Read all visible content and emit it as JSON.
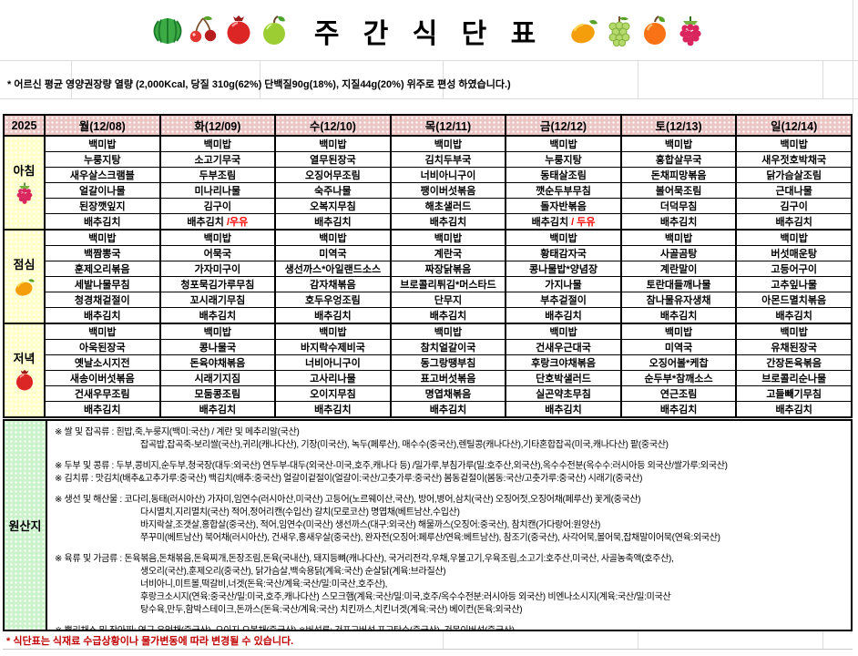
{
  "title": "주 간 식 단 표",
  "note": "* 어르신 평균 영양권장량 열량 (2,000Kcal, 당질 310g(62%) 단백질90g(18%), 지질44g(20%) 위주로 편성 하였습니다.)",
  "colors": {
    "header_pink": "#ecc5c5",
    "label_yellow": "#ffffc9",
    "origin_green": "#cbf3cb",
    "milk_red": "#ff0000",
    "footer_red": "#c00000"
  },
  "header": {
    "year": "2025",
    "days": [
      "월(12/08)",
      "화(12/09)",
      "수(12/10)",
      "목(12/11)",
      "금(12/12)",
      "토(12/13)",
      "일(12/14)"
    ],
    "fruits_left": [
      "watermelon-icon",
      "cherries-icon",
      "pomegranate-icon",
      "green-apple-icon"
    ],
    "fruits_right": [
      "mango-icon",
      "grapes-icon",
      "orange-icon",
      "raspberry-icon"
    ]
  },
  "meals": [
    {
      "name": "아침",
      "icon": "raspberry-icon",
      "rows": [
        [
          "백미밥",
          "백미밥",
          "백미밥",
          "백미밥",
          "백미밥",
          "백미밥",
          "백미밥"
        ],
        [
          "누룽지탕",
          "소고기무국",
          "열무된장국",
          "김치두부국",
          "누룽지탕",
          "홍합살무국",
          "새우젓호박채국"
        ],
        [
          "새우살스크램블",
          "두부조림",
          "오징어무조림",
          "너비아니구이",
          "동태살조림",
          "돈채피망볶음",
          "닭가슴살조림"
        ],
        [
          "얼갈이나물",
          "미나리나물",
          "숙주나물",
          "팽이버섯볶음",
          "깻순두부무침",
          "볼어묵조림",
          "근대나물"
        ],
        [
          "된장깻잎지",
          "김구이",
          "오복지무침",
          "해초샐러드",
          "돌자반볶음",
          "더덕무침",
          "김구이"
        ],
        [
          "배추김치",
          {
            "text": "배추김치",
            "suffix": " /우유"
          },
          "배추김치",
          "배추김치",
          {
            "text": "배추김치",
            "suffix": " / 두유"
          },
          "배추김치",
          "배추김치"
        ]
      ]
    },
    {
      "name": "점심",
      "icon": "mango-icon",
      "rows": [
        [
          "백미밥",
          "백미밥",
          "백미밥",
          "백미밥",
          "백미밥",
          "백미밥",
          "백미밥"
        ],
        [
          "백짬뽕국",
          "어묵국",
          "미역국",
          "계란국",
          "황태감자국",
          "사골곰탕",
          "버섯매운탕"
        ],
        [
          "훈제오리볶음",
          "가자미구이",
          "생선까스*아일랜드소스",
          "짜장닭볶음",
          "콩나물밥*양념장",
          "계란말이",
          "고등어구이"
        ],
        [
          "세발나물무침",
          "청포묵김가루무침",
          "감자채볶음",
          "브로콜리튀김*머스타드",
          "가지나물",
          "토란대들깨나물",
          "고추잎나물"
        ],
        [
          "청경채겉절이",
          "꼬시래기무침",
          "호두우엉조림",
          "단무지",
          "부추겉절이",
          "참나물유자생채",
          "아몬드멸치볶음"
        ],
        [
          "배추김치",
          "배추김치",
          "배추김치",
          "배추김치",
          "배추김치",
          "배추김치",
          "배추김치"
        ]
      ]
    },
    {
      "name": "저녁",
      "icon": "pomegranate-icon",
      "rows": [
        [
          "백미밥",
          "백미밥",
          "백미밥",
          "백미밥",
          "백미밥",
          "백미밥",
          "백미밥"
        ],
        [
          "아욱된장국",
          "콩나물국",
          "바지락수제비국",
          "참치얼갈이국",
          "건새우근대국",
          "미역국",
          "유채된장국"
        ],
        [
          "옛날소시지전",
          "돈육야채볶음",
          "너비아니구이",
          "동그랑땡부침",
          "후랑크야채볶음",
          "오징어볼*케찹",
          "간장돈육볶음"
        ],
        [
          "새송이버섯볶음",
          "시래기지짐",
          "고사리나물",
          "표고버섯볶음",
          "단호박샐러드",
          "순두부*참깨소스",
          "브로콜리순나물"
        ],
        [
          "건새우무조림",
          "모둠콩조림",
          "오이지무침",
          "명엽채볶음",
          "실곤약초무침",
          "연근조림",
          "고들빼기무침"
        ],
        [
          "배추김치",
          "배추김치",
          "배추김치",
          "배추김치",
          "배추김치",
          "배추김치",
          "배추김치"
        ]
      ]
    }
  ],
  "origin": {
    "label": "원산지",
    "lines": [
      {
        "text": "※ 쌀 및 잡곡류 : 흰밥,죽,누룽지(백미:국산)  / 계란 및 메추리알(국산)"
      },
      {
        "text": "잡곡밥,잡곡죽-보리쌀(국산),귀리(캐나다산), 기장(미국산), 녹두(페루산), 매수수(중국산),렌틸콩(캐나다산),기타혼합잡곡(미국,캐나다산) 팥(중국산)",
        "indent": true
      },
      {
        "text": "※ 두부 및 콩류 : 두부,콩비지,순두부,청국장(대두:외국산) 연두부-대두(외국산-미국,호주,캐나다 등) /밀가루,부침가루(밀:호주산,외국산),옥수수전분(옥수수:러시아등 외국산/쌀가루:외국산)",
        "gap": true
      },
      {
        "text": "※ 김치류 : 맛김치(배추&고추가루:중국산)  백김치(배추:중국산) 얼갈이겉절이(얼갈이:국산/고춧가루:중국산) 봄동겉절이(봄동:국산/고춧가루:중국산) 시래기(중국산)"
      },
      {
        "text": "※ 생선 및 해산물 : 코다리,동태(러시아산) 가자미,임연수(러시아산,미국산) 고등어(노르웨이산,국산), 방어,병어,삼치(국산) 오징어젓,오징어채(페루산) 꽃게(중국산)",
        "gap": true
      },
      {
        "text": "다시멸치,지리멸치(국산) 적어,정어리캔(수입산) 갈치(모로코산) 명엽채(베트남산,수입산)",
        "indent": true
      },
      {
        "text": "바지락살,조갯살,홍합살(중국산), 적어,임연수(미국산) 생선까스(대구:외국산) 해물까스(오징어:중국산), 참치캔(가다랑어:원양산)",
        "indent": true
      },
      {
        "text": "쭈꾸미(베트남산) 북어채(러시아산), 건새우,홍새우살(중국산), 완자전(오징어:페루산/연육:베트남산), 참조기(중국산), 사각어묵,볼어묵,잡채말이어묵(연육:외국산)",
        "indent": true
      },
      {
        "text": "※ 육류 및 가금류 : 돈육볶음,돈채볶음,돈육찌개,돈장조림,돈육(국내산), 돼지등뼈(캐나다산), 국거리전각,우채,우불고기,우육조림,소고기:호주산,미국산, 사골농축액(호주산),",
        "gap": true
      },
      {
        "text": "생오리(국산),훈제오리(중국산),  닭가슴살,백숙용닭(계육:국산) 순살닭(계육:브라질산)",
        "indent": true
      },
      {
        "text": "너비아니,미트볼,떡갈비,너겟(돈육:국산/계육:국산/밀:미국산,호주산),",
        "indent": true
      },
      {
        "text": "후랑크소시지(연육:중국산/밀:미국,호주,캐나다산) 스모크햄(계육:국산/밀:미국,호주/옥수수전분:러시아등 외국산) 비엔나소시지(계육:국산/밀:미국산",
        "indent": true
      },
      {
        "text": "탕수육,만두,함박스테이크,돈까스(돈육:국산/계육:국산) 치킨까스,치킨너겟(계육:국산) 베이컨(돈육:외국산)",
        "indent": true
      },
      {
        "text": "※ 뿌리채소 및 장아찌:  연근,우엉채(중국산), 오이지,오복채(중국산)  ※버섯류: 건표고버섯,표고탕수(중국산), 건목이버섯(중국산)",
        "gap": true
      }
    ]
  },
  "footer_note": "* 식단표는 식재료 수급상황이나 물가변동에 따라 변경될 수 있습니다."
}
